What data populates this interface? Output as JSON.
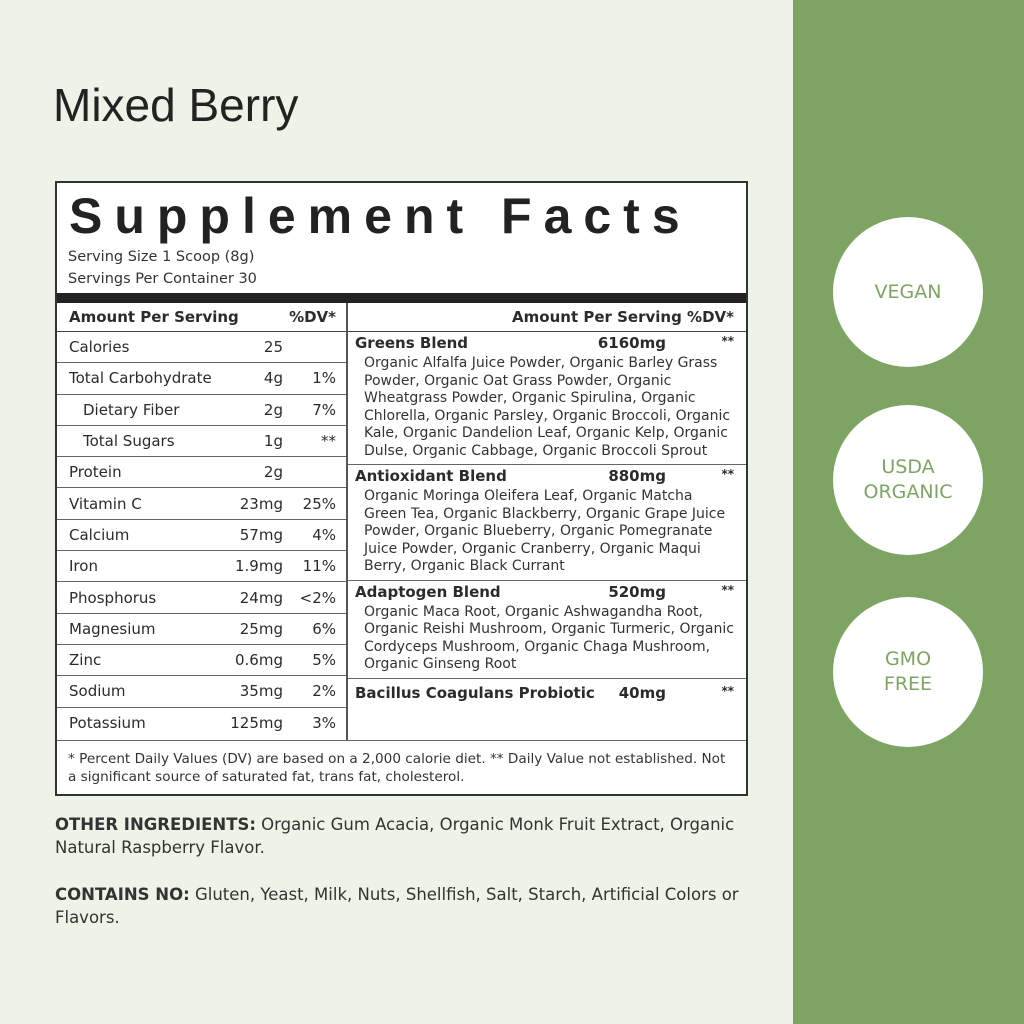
{
  "title": "Mixed Berry",
  "badges": [
    "VEGAN",
    "USDA\nORGANIC",
    "GMO\nFREE"
  ],
  "colors": {
    "background": "#eef3e7",
    "side_band": "#7ea463",
    "badge_text": "#7ea463"
  },
  "facts": {
    "heading": "Supplement Facts",
    "serving_size": "Serving Size 1 Scoop (8g)",
    "servings_per_container": "Servings Per Container 30",
    "left_header": {
      "label": "Amount Per Serving",
      "dv": "%DV*"
    },
    "right_header": "Amount Per Serving %DV*",
    "nutrients": [
      {
        "name": "Calories",
        "amount": "25",
        "dv": ""
      },
      {
        "name": "Total Carbohydrate",
        "amount": "4g",
        "dv": "1%"
      },
      {
        "name": "Dietary Fiber",
        "amount": "2g",
        "dv": "7%",
        "indent": true
      },
      {
        "name": "Total Sugars",
        "amount": "1g",
        "dv": "**",
        "indent": true
      },
      {
        "name": "Protein",
        "amount": "2g",
        "dv": ""
      },
      {
        "name": "Vitamin C",
        "amount": "23mg",
        "dv": "25%"
      },
      {
        "name": "Calcium",
        "amount": "57mg",
        "dv": "4%"
      },
      {
        "name": "Iron",
        "amount": "1.9mg",
        "dv": "11%"
      },
      {
        "name": "Phosphorus",
        "amount": "24mg",
        "dv": "<2%"
      },
      {
        "name": "Magnesium",
        "amount": "25mg",
        "dv": "6%"
      },
      {
        "name": "Zinc",
        "amount": "0.6mg",
        "dv": "5%"
      },
      {
        "name": "Sodium",
        "amount": "35mg",
        "dv": "2%"
      },
      {
        "name": "Potassium",
        "amount": "125mg",
        "dv": "3%"
      }
    ],
    "blends": [
      {
        "name": "Greens Blend",
        "amount": "6160mg",
        "dv": "**",
        "ingredients": "Organic Alfalfa Juice Powder, Organic Barley Grass Powder, Organic Oat Grass Powder, Organic Wheatgrass Powder, Organic Spirulina, Organic Chlorella, Organic Parsley, Organic Broccoli, Organic Kale, Organic Dandelion Leaf, Organic Kelp, Organic Dulse, Organic Cabbage, Organic Broccoli Sprout"
      },
      {
        "name": "Antioxidant Blend",
        "amount": "880mg",
        "dv": "**",
        "ingredients": "Organic Moringa Oleifera Leaf, Organic Matcha Green Tea, Organic Blackberry, Organic Grape Juice Powder, Organic Blueberry, Organic Pomegranate Juice Powder, Organic Cranberry, Organic Maqui Berry, Organic Black Currant"
      },
      {
        "name": "Adaptogen Blend",
        "amount": "520mg",
        "dv": "**",
        "ingredients": "Organic Maca Root, Organic Ashwagandha Root, Organic Reishi Mushroom, Organic Turmeric, Organic Cordyceps Mushroom, Organic Chaga Mushroom, Organic Ginseng Root"
      },
      {
        "name": "Bacillus Coagulans Probiotic",
        "amount": "40mg",
        "dv": "**",
        "ingredients": ""
      }
    ],
    "footnote": "* Percent Daily Values (DV) are based on a 2,000 calorie diet. ** Daily Value not established. Not a significant source of saturated fat, trans fat, cholesterol."
  },
  "other_ingredients": {
    "label": "OTHER INGREDIENTS:",
    "text": " Organic Gum Acacia, Organic Monk Fruit Extract, Organic Natural Raspberry Flavor."
  },
  "contains_no": {
    "label": "CONTAINS NO:",
    "text": " Gluten, Yeast, Milk, Nuts, Shellfish, Salt, Starch, Artificial Colors or Flavors."
  }
}
